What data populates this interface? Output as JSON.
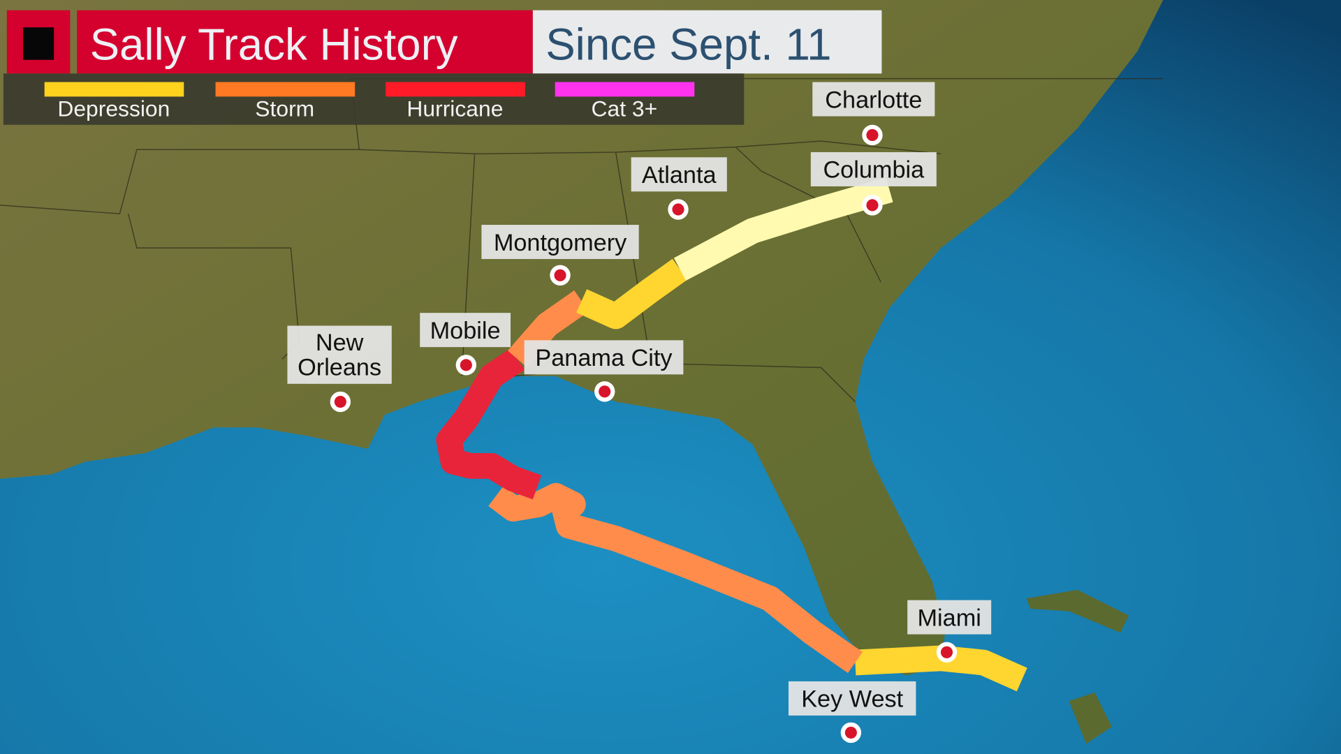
{
  "header": {
    "title": "Sally Track History",
    "subtitle": "Since Sept. 11",
    "title_bg": "#d4002e",
    "subtitle_bg": "#e8eaec",
    "subtitle_color": "#2c5070"
  },
  "legend": [
    {
      "label": "Depression",
      "color": "#ffd21e"
    },
    {
      "label": "Storm",
      "color": "#ff7a22"
    },
    {
      "label": "Hurricane",
      "color": "#ff1a28"
    },
    {
      "label": "Cat 3+",
      "color": "#ff33ee"
    }
  ],
  "cities": [
    {
      "name": "Charlotte"
    },
    {
      "name": "Columbia"
    },
    {
      "name": "Atlanta"
    },
    {
      "name": "Montgomery"
    },
    {
      "name": "Mobile"
    },
    {
      "name": "Panama City"
    },
    {
      "name": "New",
      "name2": "Orleans"
    },
    {
      "name": "Miami"
    },
    {
      "name": "Key West"
    }
  ],
  "track_colors": {
    "depression": "#ffd530",
    "storm": "#ff8c4a",
    "hurricane": "#e8243a",
    "post_tropical": "#fffab0"
  }
}
